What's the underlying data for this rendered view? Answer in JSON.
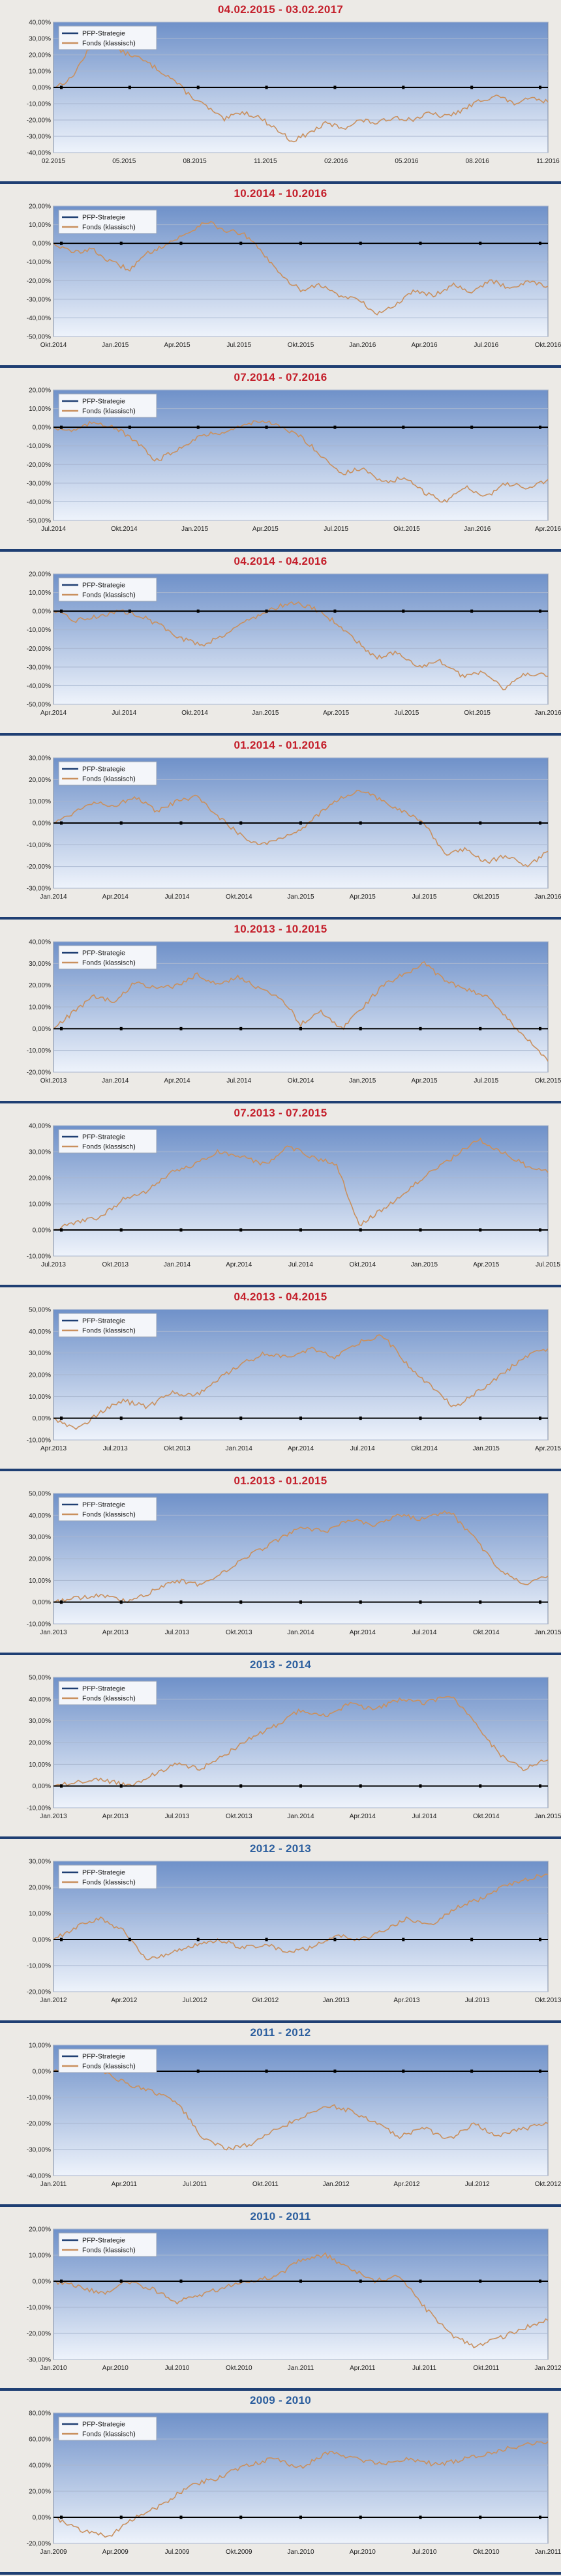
{
  "colors": {
    "red_title": "#c41f2b",
    "blue_title": "#2b5e9e",
    "plot_top": "#6f91c9",
    "plot_bottom": "#eef3fb",
    "pfp_line": "#1f3f73",
    "fund_line": "#c9905e",
    "zero_line": "#000000",
    "separator": "#1f3f73"
  },
  "legend": [
    "PFP-Strategie",
    "Fonds (klassisch)"
  ],
  "chart_data": [
    {
      "type": "line",
      "title": "04.02.2015 - 03.02.2017",
      "title_color": "red",
      "ylim": [
        -40,
        40
      ],
      "ystep": 10,
      "xticks": [
        "02.2015",
        "05.2015",
        "08.2015",
        "11.2015",
        "02.2016",
        "05.2016",
        "08.2016",
        "11.2016"
      ],
      "series": [
        {
          "name": "PFP-Strategie",
          "values": [
            0
          ]
        },
        {
          "name": "Fonds (klassisch)",
          "values": [
            0,
            5,
            22,
            30,
            22,
            18,
            12,
            5,
            -5,
            -12,
            -20,
            -15,
            -18,
            -25,
            -33,
            -28,
            -22,
            -25,
            -20,
            -22,
            -18,
            -20,
            -16,
            -18,
            -14,
            -8,
            -5,
            -10,
            -7,
            -9
          ]
        }
      ]
    },
    {
      "type": "line",
      "title": "10.2014 - 10.2016",
      "title_color": "red",
      "ylim": [
        -50,
        20
      ],
      "ystep": 10,
      "xticks": [
        "Okt.2014",
        "Jan.2015",
        "Apr.2015",
        "Jul.2015",
        "Okt.2015",
        "Jan.2016",
        "Apr.2016",
        "Jul.2016",
        "Okt.2016"
      ],
      "series": [
        {
          "name": "PFP-Strategie",
          "values": [
            0
          ]
        },
        {
          "name": "Fonds (klassisch)",
          "values": [
            0,
            -5,
            -3,
            -10,
            -14,
            -5,
            0,
            5,
            12,
            7,
            5,
            -5,
            -18,
            -25,
            -22,
            -28,
            -30,
            -38,
            -33,
            -25,
            -28,
            -22,
            -26,
            -20,
            -24,
            -20,
            -23
          ]
        }
      ]
    },
    {
      "type": "line",
      "title": "07.2014 - 07.2016",
      "title_color": "red",
      "ylim": [
        -50,
        20
      ],
      "ystep": 10,
      "xticks": [
        "Jul.2014",
        "Okt.2014",
        "Jan.2015",
        "Apr.2015",
        "Jul.2015",
        "Okt.2015",
        "Jan.2016",
        "Apr.2016"
      ],
      "series": [
        {
          "name": "PFP-Strategie",
          "values": [
            0
          ]
        },
        {
          "name": "Fonds (klassisch)",
          "values": [
            0,
            -2,
            3,
            0,
            -8,
            -18,
            -12,
            -5,
            -3,
            0,
            4,
            0,
            -5,
            -15,
            -25,
            -22,
            -30,
            -27,
            -35,
            -40,
            -32,
            -37,
            -30,
            -33,
            -28
          ]
        }
      ]
    },
    {
      "type": "line",
      "title": "04.2014 - 04.2016",
      "title_color": "red",
      "ylim": [
        -50,
        20
      ],
      "ystep": 10,
      "xticks": [
        "Apr.2014",
        "Jul.2014",
        "Okt.2014",
        "Jan.2015",
        "Apr.2015",
        "Jul.2015",
        "Okt.2015",
        "Jan.2016"
      ],
      "series": [
        {
          "name": "PFP-Strategie",
          "values": [
            0
          ]
        },
        {
          "name": "Fonds (klassisch)",
          "values": [
            0,
            -5,
            -3,
            0,
            -2,
            -8,
            -15,
            -18,
            -12,
            -5,
            0,
            5,
            2,
            -5,
            -15,
            -25,
            -22,
            -30,
            -27,
            -35,
            -32,
            -42,
            -33,
            -35
          ]
        }
      ]
    },
    {
      "type": "line",
      "title": "01.2014 - 01.2016",
      "title_color": "red",
      "ylim": [
        -30,
        30
      ],
      "ystep": 10,
      "xticks": [
        "Jan.2014",
        "Apr.2014",
        "Jul.2014",
        "Okt.2014",
        "Jan.2015",
        "Apr.2015",
        "Jul.2015",
        "Okt.2015",
        "Jan.2016"
      ],
      "series": [
        {
          "name": "PFP-Strategie",
          "values": [
            0
          ]
        },
        {
          "name": "Fonds (klassisch)",
          "values": [
            0,
            5,
            10,
            8,
            12,
            5,
            10,
            12,
            3,
            -5,
            -10,
            -7,
            -3,
            5,
            12,
            15,
            10,
            5,
            0,
            -15,
            -12,
            -18,
            -15,
            -20,
            -13
          ]
        }
      ]
    },
    {
      "type": "line",
      "title": "10.2013 - 10.2015",
      "title_color": "red",
      "ylim": [
        -20,
        40
      ],
      "ystep": 10,
      "xticks": [
        "Okt.2013",
        "Jan.2014",
        "Apr.2014",
        "Jul.2014",
        "Okt.2014",
        "Jan.2015",
        "Apr.2015",
        "Jul.2015",
        "Okt.2015"
      ],
      "series": [
        {
          "name": "PFP-Strategie",
          "values": [
            0
          ]
        },
        {
          "name": "Fonds (klassisch)",
          "values": [
            0,
            8,
            15,
            12,
            22,
            18,
            20,
            25,
            20,
            24,
            18,
            15,
            2,
            8,
            0,
            10,
            20,
            25,
            30,
            22,
            18,
            15,
            5,
            -5,
            -15
          ]
        }
      ]
    },
    {
      "type": "line",
      "title": "07.2013 - 07.2015",
      "title_color": "red",
      "ylim": [
        -10,
        40
      ],
      "ystep": 10,
      "xticks": [
        "Jul.2013",
        "Okt.2013",
        "Jan.2014",
        "Apr.2014",
        "Jul.2014",
        "Okt.2014",
        "Jan.2015",
        "Apr.2015",
        "Jul.2015"
      ],
      "series": [
        {
          "name": "PFP-Strategie",
          "values": [
            0
          ]
        },
        {
          "name": "Fonds (klassisch)",
          "values": [
            0,
            3,
            5,
            12,
            15,
            22,
            25,
            30,
            28,
            25,
            32,
            28,
            25,
            2,
            8,
            15,
            22,
            28,
            35,
            30,
            25,
            22
          ]
        }
      ]
    },
    {
      "type": "line",
      "title": "04.2013 - 04.2015",
      "title_color": "red",
      "ylim": [
        -10,
        50
      ],
      "ystep": 10,
      "xticks": [
        "Apr.2013",
        "Jul.2013",
        "Okt.2013",
        "Jan.2014",
        "Apr.2014",
        "Jul.2014",
        "Okt.2014",
        "Jan.2015",
        "Apr.2015"
      ],
      "series": [
        {
          "name": "PFP-Strategie",
          "values": [
            0
          ]
        },
        {
          "name": "Fonds (klassisch)",
          "values": [
            0,
            -5,
            3,
            8,
            5,
            12,
            10,
            18,
            25,
            30,
            28,
            32,
            28,
            35,
            38,
            25,
            15,
            5,
            12,
            20,
            28,
            32
          ]
        }
      ]
    },
    {
      "type": "line",
      "title": "01.2013 - 01.2015",
      "title_color": "red",
      "ylim": [
        -10,
        50
      ],
      "ystep": 10,
      "xticks": [
        "Jan.2013",
        "Apr.2013",
        "Jul.2013",
        "Okt.2013",
        "Jan.2014",
        "Apr.2014",
        "Jul.2014",
        "Okt.2014",
        "Jan.2015"
      ],
      "series": [
        {
          "name": "PFP-Strategie",
          "values": [
            0
          ]
        },
        {
          "name": "Fonds (klassisch)",
          "values": [
            0,
            2,
            3,
            0,
            5,
            10,
            8,
            15,
            22,
            28,
            35,
            32,
            38,
            35,
            40,
            38,
            42,
            30,
            15,
            8,
            12
          ]
        }
      ]
    },
    {
      "type": "line",
      "title": "2013 - 2014",
      "title_color": "blue",
      "ylim": [
        -10,
        50
      ],
      "ystep": 10,
      "xticks": [
        "Jan.2013",
        "Apr.2013",
        "Jul.2013",
        "Okt.2013",
        "Jan.2014",
        "Apr.2014",
        "Jul.2014",
        "Okt.2014",
        "Jan.2015"
      ],
      "series": [
        {
          "name": "PFP-Strategie",
          "values": [
            0
          ]
        },
        {
          "name": "Fonds (klassisch)",
          "values": [
            0,
            2,
            3,
            0,
            5,
            10,
            8,
            15,
            22,
            28,
            35,
            32,
            38,
            35,
            40,
            38,
            42,
            30,
            15,
            8,
            12
          ]
        }
      ]
    },
    {
      "type": "line",
      "title": "2012 - 2013",
      "title_color": "blue",
      "ylim": [
        -20,
        30
      ],
      "ystep": 10,
      "xticks": [
        "Jan.2012",
        "Apr.2012",
        "Jul.2012",
        "Okt.2012",
        "Jan.2013",
        "Apr.2013",
        "Jul.2013",
        "Okt.2013"
      ],
      "series": [
        {
          "name": "PFP-Strategie",
          "values": [
            0
          ]
        },
        {
          "name": "Fonds (klassisch)",
          "values": [
            0,
            5,
            8,
            3,
            -8,
            -5,
            -2,
            0,
            -3,
            -2,
            -5,
            -3,
            2,
            0,
            3,
            8,
            5,
            12,
            15,
            20,
            23,
            25
          ]
        }
      ]
    },
    {
      "type": "line",
      "title": "2011 - 2012",
      "title_color": "blue",
      "ylim": [
        -40,
        10
      ],
      "ystep": 10,
      "xticks": [
        "Jan.2011",
        "Apr.2011",
        "Jul.2011",
        "Okt.2011",
        "Jan.2012",
        "Apr.2012",
        "Jul.2012",
        "Okt.2012"
      ],
      "series": [
        {
          "name": "PFP-Strategie",
          "values": [
            0
          ]
        },
        {
          "name": "Fonds (klassisch)",
          "values": [
            0,
            3,
            0,
            -5,
            -8,
            -12,
            -25,
            -30,
            -28,
            -22,
            -18,
            -13,
            -15,
            -20,
            -25,
            -22,
            -26,
            -20,
            -25,
            -22,
            -20
          ]
        }
      ]
    },
    {
      "type": "line",
      "title": "2010 - 2011",
      "title_color": "blue",
      "ylim": [
        -30,
        20
      ],
      "ystep": 10,
      "xticks": [
        "Jan.2010",
        "Apr.2010",
        "Jul.2010",
        "Okt.2010",
        "Jan.2011",
        "Apr.2011",
        "Jul.2011",
        "Okt.2011",
        "Jan.2012"
      ],
      "series": [
        {
          "name": "PFP-Strategie",
          "values": [
            0
          ]
        },
        {
          "name": "Fonds (klassisch)",
          "values": [
            0,
            -2,
            -5,
            0,
            -3,
            -8,
            -5,
            -2,
            0,
            2,
            8,
            10,
            5,
            0,
            2,
            -10,
            -20,
            -25,
            -22,
            -18,
            -15
          ]
        }
      ]
    },
    {
      "type": "line",
      "title": "2009 - 2010",
      "title_color": "blue",
      "ylim": [
        -20,
        80
      ],
      "ystep": 20,
      "xticks": [
        "Jan.2009",
        "Apr.2009",
        "Jul.2009",
        "Okt.2009",
        "Jan.2010",
        "Apr.2010",
        "Jul.2010",
        "Okt.2010",
        "Jan.2011"
      ],
      "series": [
        {
          "name": "PFP-Strategie",
          "values": [
            0
          ]
        },
        {
          "name": "Fonds (klassisch)",
          "values": [
            0,
            -10,
            -15,
            0,
            10,
            25,
            30,
            40,
            45,
            38,
            50,
            45,
            40,
            45,
            40,
            45,
            50,
            55,
            58
          ]
        }
      ]
    }
  ]
}
